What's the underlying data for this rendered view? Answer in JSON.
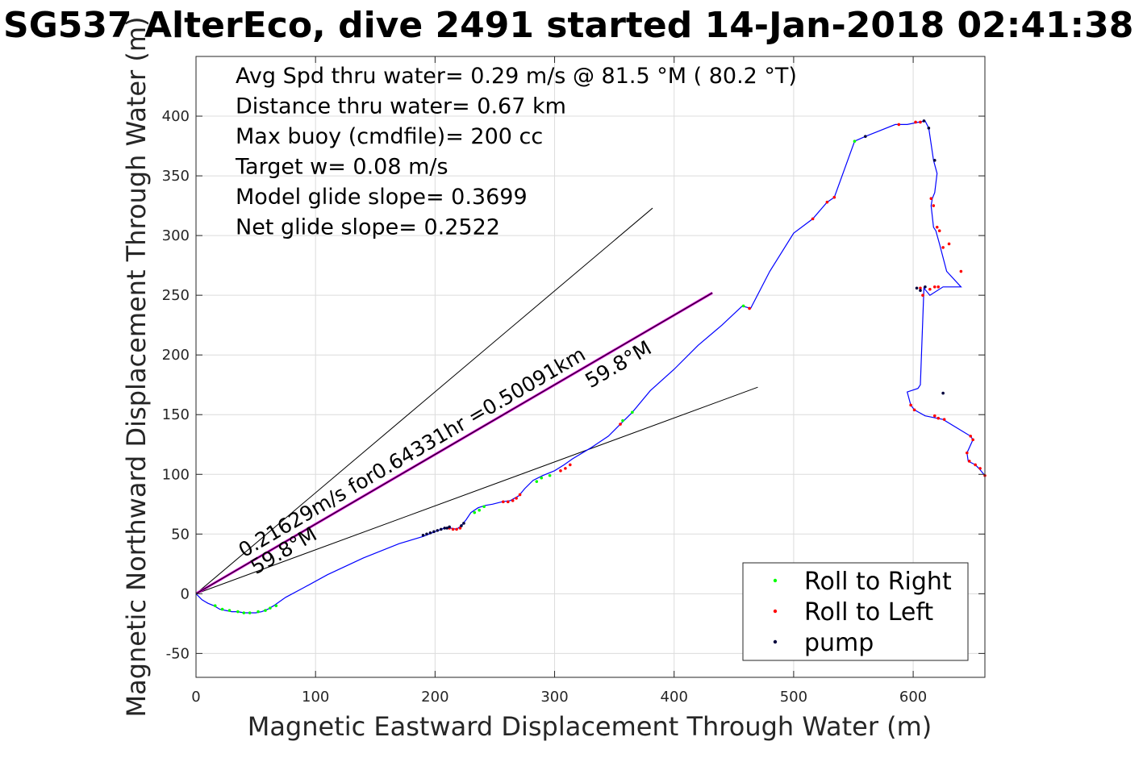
{
  "chart_data": {
    "type": "scatter",
    "title": "SG537 AlterEco, dive 2491 started 14-Jan-2018 02:41:38",
    "xlabel": "Magnetic Eastward Displacement Through Water (m)",
    "ylabel": "Magnetic Northward Displacement Through Water (m)",
    "xlim": [
      0,
      660
    ],
    "ylim": [
      -70,
      450
    ],
    "xticks": [
      0,
      100,
      200,
      300,
      400,
      500,
      600
    ],
    "yticks": [
      -50,
      0,
      50,
      100,
      150,
      200,
      250,
      300,
      350,
      400
    ],
    "grid": true,
    "legend_position": "bottom-right",
    "info_lines": [
      "Avg Spd thru water=  0.29 m/s @  81.5 °M ( 80.2 °T)",
      "Distance thru water=  0.67 km",
      "Max buoy (cmdfile)= 200 cc",
      "Target w= 0.08 m/s",
      "Model glide slope= 0.3699",
      "Net glide slope= 0.2522"
    ],
    "annotations": [
      {
        "text": "0.21629m/s for0.64331hr =0.50091km",
        "x": 40,
        "y": 30,
        "angle_deg": 30.2
      },
      {
        "text": "59.8°M",
        "x": 330,
        "y": 172,
        "angle_deg": 30.2
      },
      {
        "text": "59.8°M",
        "x": 50,
        "y": 16,
        "angle_deg": 30.2
      }
    ],
    "reference_lines": [
      {
        "name": "upper",
        "color": "#000000",
        "x": [
          0,
          382
        ],
        "y": [
          0,
          323
        ]
      },
      {
        "name": "lower",
        "color": "#000000",
        "x": [
          0,
          470
        ],
        "y": [
          0,
          173
        ]
      },
      {
        "name": "net",
        "color": "#d100d1",
        "x": [
          0,
          432
        ],
        "y": [
          0,
          252
        ]
      },
      {
        "name": "net-center",
        "color": "#000000",
        "x": [
          0,
          432
        ],
        "y": [
          0,
          252
        ]
      }
    ],
    "track": {
      "color": "#0000ff",
      "x": [
        0,
        5,
        10,
        15,
        20,
        25,
        30,
        35,
        40,
        45,
        50,
        55,
        60,
        65,
        75,
        90,
        110,
        140,
        170,
        190,
        200,
        208,
        213,
        218,
        222,
        226,
        230,
        236,
        242,
        248,
        256,
        263,
        270,
        275,
        282,
        290,
        300,
        308,
        315,
        330,
        345,
        355,
        365,
        380,
        400,
        420,
        440,
        457,
        464,
        480,
        500,
        516,
        528,
        534,
        551,
        560,
        570,
        585,
        595,
        605,
        610,
        613,
        617,
        620,
        618,
        616,
        615,
        617,
        619,
        622,
        628,
        640,
        625,
        614,
        609,
        606,
        604,
        595,
        598,
        601,
        610,
        620,
        625,
        648,
        650,
        645,
        646,
        652,
        655,
        660
      ],
      "y": [
        0,
        -5,
        -8,
        -10,
        -13,
        -14,
        -15,
        -15,
        -16,
        -16,
        -16,
        -15,
        -13,
        -10,
        -3,
        5,
        16,
        30,
        42,
        48,
        52,
        55,
        55,
        54,
        57,
        62,
        68,
        72,
        74,
        75,
        77,
        78,
        82,
        88,
        95,
        99,
        103,
        108,
        113,
        122,
        132,
        142,
        152,
        170,
        188,
        208,
        225,
        241,
        239,
        270,
        302,
        314,
        328,
        332,
        379,
        383,
        387,
        393,
        393,
        395,
        396,
        390,
        363,
        352,
        336,
        331,
        325,
        307,
        304,
        293,
        270,
        257,
        257,
        250,
        256,
        175,
        172,
        169,
        158,
        154,
        149,
        147,
        146,
        132,
        129,
        118,
        111,
        108,
        105,
        99
      ]
    },
    "pump_points": {
      "color": "#00003c",
      "x": [
        190,
        193,
        196,
        199,
        202,
        205,
        208,
        210,
        212,
        222,
        224,
        560,
        609,
        613,
        618,
        603,
        606,
        610,
        625
      ],
      "y": [
        49,
        50,
        51,
        52,
        53,
        54,
        55,
        55,
        56,
        57,
        59,
        383,
        396,
        390,
        363,
        256,
        254,
        257,
        168
      ]
    },
    "roll_right_points": {
      "color": "#00ff00",
      "x": [
        16,
        22,
        28,
        35,
        40,
        45,
        52,
        58,
        62,
        67,
        233,
        237,
        241,
        285,
        289,
        296,
        357,
        365,
        458,
        551
      ],
      "y": [
        -10,
        -13,
        -14,
        -15,
        -16,
        -16,
        -15,
        -14,
        -12,
        -10,
        68,
        70,
        73,
        94,
        97,
        99,
        145,
        152,
        241,
        379
      ],
      "count_displayed": 20
    },
    "roll_left_points": {
      "color": "#ff0000",
      "x": [
        212,
        215,
        218,
        221,
        257,
        261,
        265,
        268,
        271,
        305,
        309,
        313,
        355,
        463,
        516,
        528,
        534,
        588,
        602,
        606,
        615,
        617,
        620,
        622,
        625,
        630,
        640,
        621,
        618,
        614,
        608,
        606,
        598,
        601,
        618,
        621,
        626,
        648,
        650,
        645,
        647,
        652,
        656,
        660
      ],
      "y": [
        55,
        54,
        54,
        55,
        77,
        77,
        78,
        80,
        83,
        103,
        105,
        108,
        142,
        239,
        314,
        328,
        332,
        393,
        395,
        395,
        331,
        325,
        307,
        304,
        290,
        293,
        270,
        257,
        257,
        255,
        250,
        256,
        158,
        154,
        149,
        147,
        146,
        132,
        129,
        118,
        111,
        108,
        105,
        99
      ],
      "count_displayed": 44
    },
    "legend": [
      {
        "label": "Roll to Right",
        "color": "#00ff00"
      },
      {
        "label": "Roll to Left",
        "color": "#ff0000"
      },
      {
        "label": "pump",
        "color": "#00003c"
      }
    ]
  }
}
